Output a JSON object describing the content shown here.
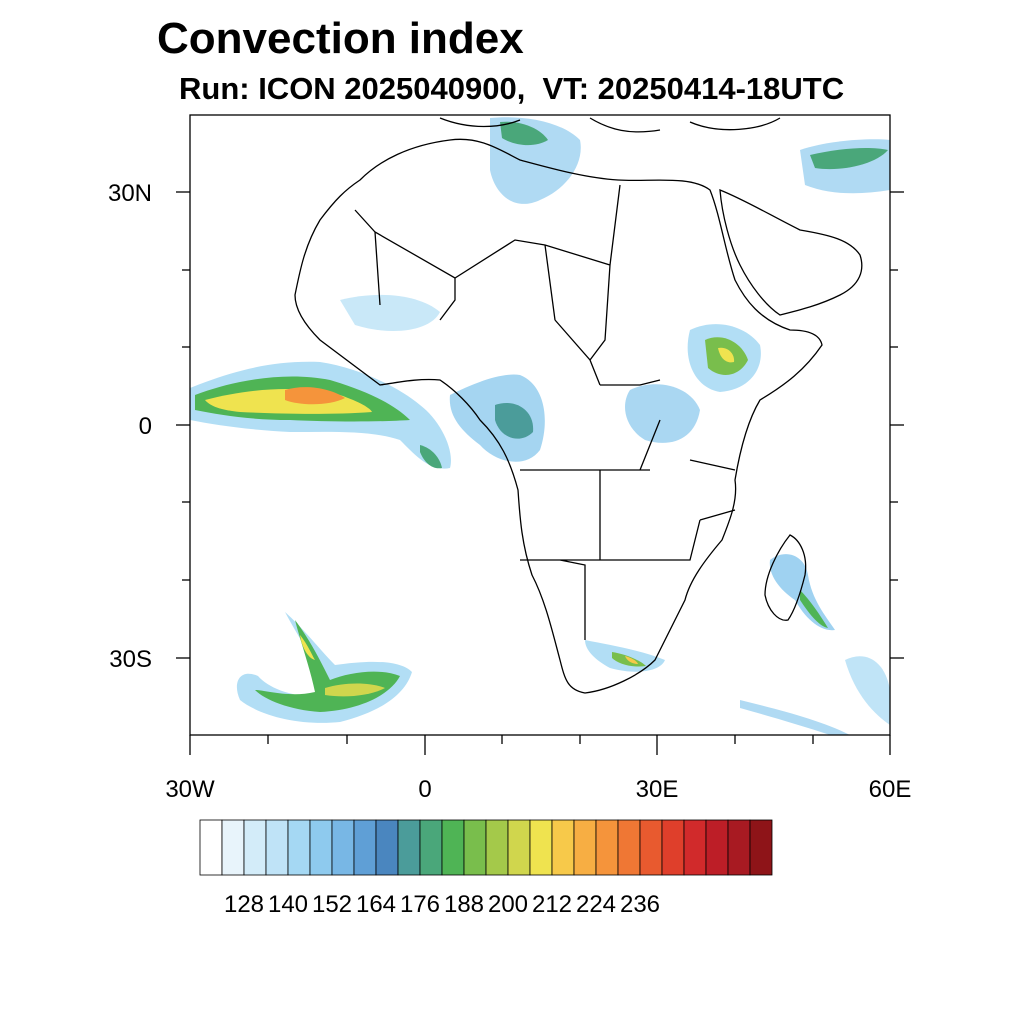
{
  "title": "Convection index",
  "subtitle": "Run: ICON 2025040900,  VT: 20250414-18UTC",
  "map": {
    "lat_labels": [
      "30N",
      "0",
      "30S"
    ],
    "lon_labels": [
      "30W",
      "0",
      "30E",
      "60E"
    ],
    "extent": {
      "lon": [
        -30,
        60
      ],
      "lat": [
        -40,
        40
      ]
    }
  },
  "colorbar": {
    "colors": [
      "#ffffff",
      "#e8f4fb",
      "#d3ecf9",
      "#bfe3f7",
      "#a5d8f3",
      "#8ecaee",
      "#78b7e5",
      "#5f9fd6",
      "#4a86bf",
      "#4b9c9a",
      "#4aa77a",
      "#4fb455",
      "#79be4c",
      "#a4c94a",
      "#d0d64d",
      "#efe34f",
      "#f7c94a",
      "#f7ae43",
      "#f5943b",
      "#ef7734",
      "#e85a2f",
      "#df3f2b",
      "#d12a2b",
      "#bd1e27",
      "#a81a22",
      "#8e1418"
    ],
    "tick_labels": [
      "128",
      "140",
      "152",
      "164",
      "176",
      "188",
      "200",
      "212",
      "224",
      "236"
    ]
  }
}
